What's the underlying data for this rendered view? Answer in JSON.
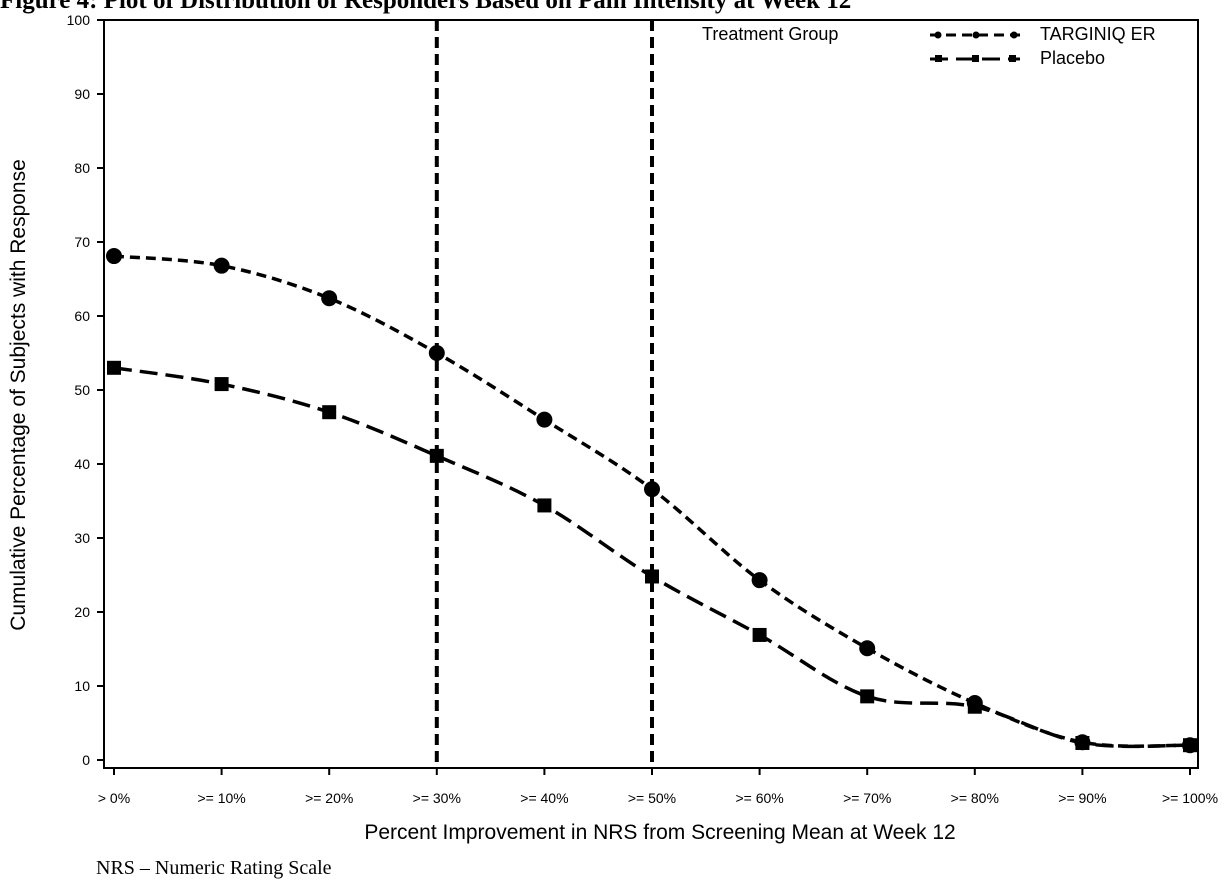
{
  "figure_title": "Figure 4: Plot of Distribution of Responders Based on Pain Intensity at Week 12",
  "footnote": "NRS – Numeric Rating Scale",
  "chart_data": {
    "type": "line",
    "title": "",
    "xlabel": "Percent Improvement in NRS from Screening Mean at Week 12",
    "ylabel": "Cumulative Percentage of Subjects with Response",
    "categories": [
      "> 0%",
      ">= 10%",
      ">= 20%",
      ">= 30%",
      ">= 40%",
      ">= 50%",
      ">= 60%",
      ">= 70%",
      ">= 80%",
      ">= 90%",
      ">= 100%"
    ],
    "yticks": [
      0,
      10,
      20,
      30,
      40,
      50,
      60,
      70,
      80,
      90,
      100
    ],
    "ylim": [
      0,
      100
    ],
    "grid": false,
    "reference_lines_at": [
      ">= 30%",
      ">= 50%"
    ],
    "legend": {
      "title": "Treatment Group",
      "placement": "top-right"
    },
    "series": [
      {
        "name": "TARGINIQ ER",
        "marker": "circle",
        "line_style": "short-dash",
        "color": "#000000",
        "values": [
          68.1,
          66.8,
          62.4,
          55.0,
          46.0,
          36.6,
          24.3,
          15.1,
          7.7,
          2.4,
          2.0
        ]
      },
      {
        "name": "Placebo",
        "marker": "square",
        "line_style": "long-dash",
        "color": "#000000",
        "values": [
          53.0,
          50.8,
          47.0,
          41.1,
          34.4,
          24.8,
          16.9,
          8.6,
          7.2,
          2.3,
          2.0
        ]
      }
    ]
  }
}
